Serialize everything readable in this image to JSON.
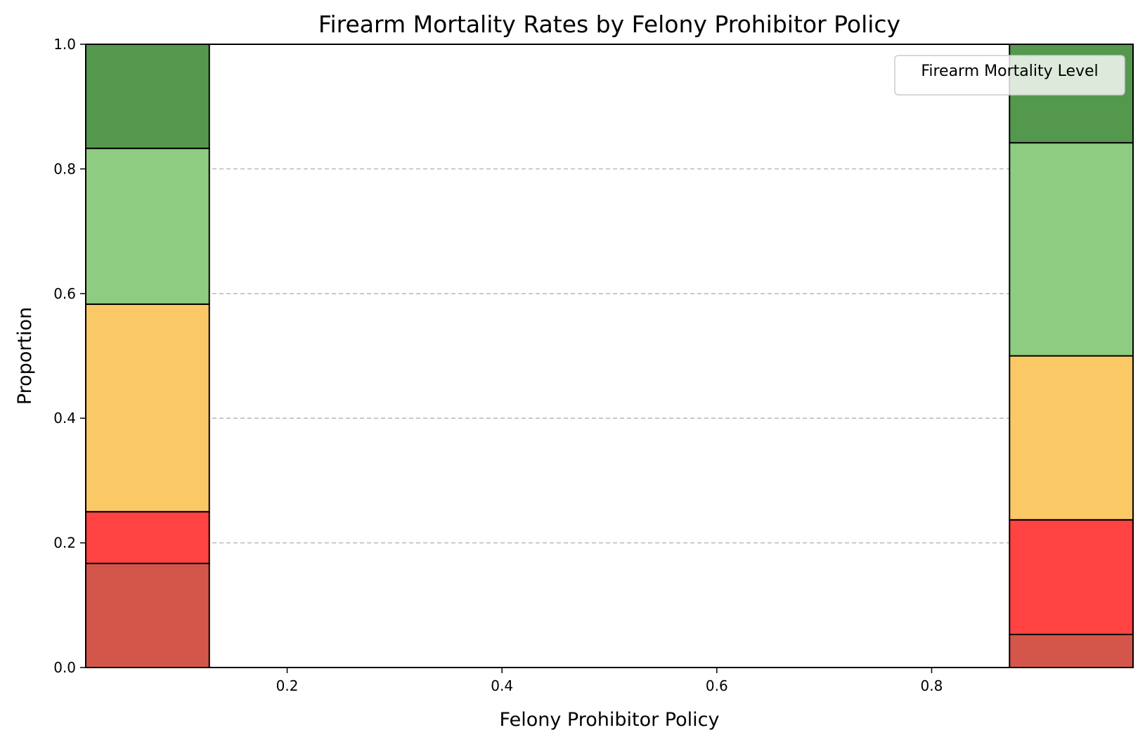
{
  "chart_data": {
    "type": "bar",
    "stacked": true,
    "normalized": true,
    "title": "Firearm Mortality Rates by Felony Prohibitor Policy",
    "xlabel": "Felony Prohibitor Policy",
    "ylabel": "Proportion",
    "xlim": [
      0.0125,
      0.9875
    ],
    "ylim": [
      0,
      1
    ],
    "xticks": [
      0.2,
      0.4,
      0.6,
      0.8
    ],
    "yticks": [
      0.0,
      0.2,
      0.4,
      0.6,
      0.8,
      1.0
    ],
    "grid": "y-dashed",
    "legend": {
      "title": "Firearm Mortality Level",
      "placement": "top-right",
      "entries": []
    },
    "bins": [
      {
        "x_range": [
          0.0125,
          0.1275
        ],
        "segments": [
          {
            "bottom": 0.0,
            "top": 0.167,
            "color": "#d4554a"
          },
          {
            "bottom": 0.167,
            "top": 0.25,
            "color": "#ff4242"
          },
          {
            "bottom": 0.25,
            "top": 0.583,
            "color": "#fac966"
          },
          {
            "bottom": 0.583,
            "top": 0.833,
            "color": "#8ecc81"
          },
          {
            "bottom": 0.833,
            "top": 1.0,
            "color": "#54984e"
          }
        ]
      },
      {
        "x_range": [
          0.8725,
          0.9875
        ],
        "segments": [
          {
            "bottom": 0.0,
            "top": 0.053,
            "color": "#d4554a"
          },
          {
            "bottom": 0.053,
            "top": 0.237,
            "color": "#ff4242"
          },
          {
            "bottom": 0.237,
            "top": 0.5,
            "color": "#fac966"
          },
          {
            "bottom": 0.5,
            "top": 0.842,
            "color": "#8ecc81"
          },
          {
            "bottom": 0.842,
            "top": 1.0,
            "color": "#54984e"
          }
        ]
      }
    ]
  }
}
